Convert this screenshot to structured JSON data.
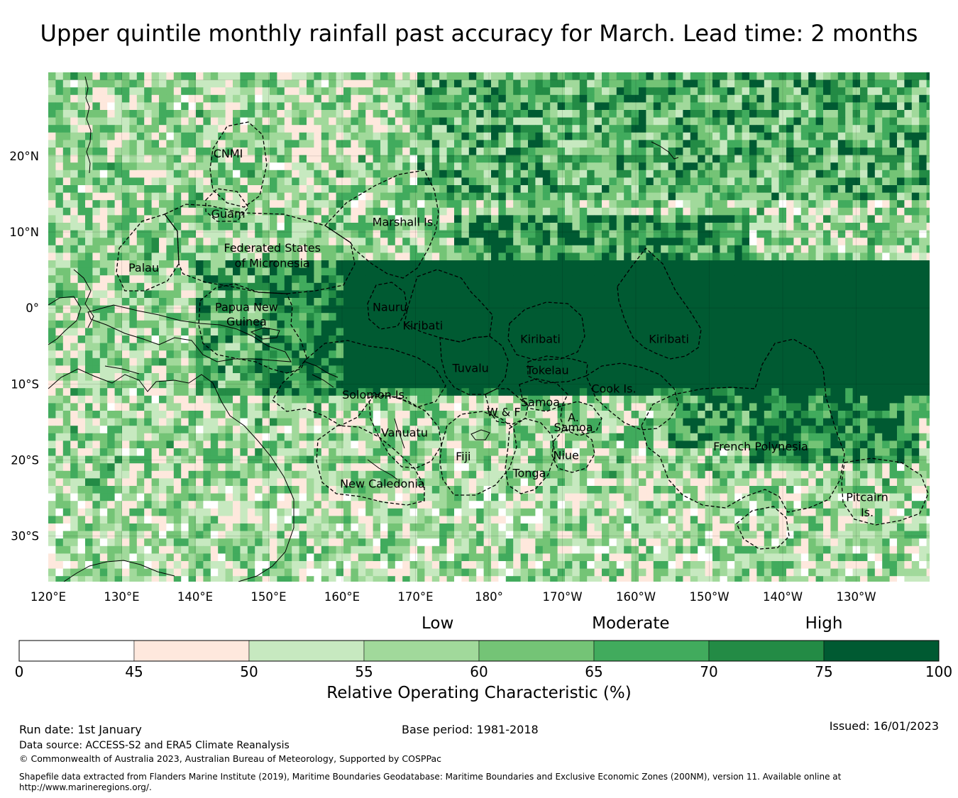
{
  "title": "Upper quintile monthly rainfall past accuracy for March. Lead time: 2 months",
  "map": {
    "lon_range": [
      120,
      240
    ],
    "lat_range": [
      -36,
      31
    ],
    "lon_ticks": [
      "120°E",
      "130°E",
      "140°E",
      "150°E",
      "160°E",
      "170°E",
      "180°",
      "170°W",
      "160°W",
      "150°W",
      "140°W",
      "130°W"
    ],
    "lat_ticks": [
      "20°N",
      "10°N",
      "0°",
      "10°S",
      "20°S",
      "30°S"
    ],
    "regions": [
      {
        "name": "CNMI",
        "lon": 144.5,
        "lat": 20.2
      },
      {
        "name": "Guam",
        "lon": 144.5,
        "lat": 12.3
      },
      {
        "name": "Marshall Is.",
        "lon": 168.5,
        "lat": 11.2
      },
      {
        "name": "Federated States",
        "lon": 150.5,
        "lat": 7.8
      },
      {
        "name": "of Micronesia",
        "lon": 150.5,
        "lat": 5.8
      },
      {
        "name": "Palau",
        "lon": 133,
        "lat": 5.2
      },
      {
        "name": "Papua New",
        "lon": 147,
        "lat": 0.0
      },
      {
        "name": "Guinea",
        "lon": 147,
        "lat": -1.9
      },
      {
        "name": "Nauru",
        "lon": 166.5,
        "lat": 0.0
      },
      {
        "name": "Kiribati",
        "lon": 171,
        "lat": -2.4
      },
      {
        "name": "Kiribati",
        "lon": 187,
        "lat": -4.2
      },
      {
        "name": "Kiribati",
        "lon": 204.5,
        "lat": -4.2
      },
      {
        "name": "Tuvalu",
        "lon": 177.5,
        "lat": -8.0
      },
      {
        "name": "Tokelau",
        "lon": 188,
        "lat": -8.3
      },
      {
        "name": "Cook Is.",
        "lon": 197,
        "lat": -10.7
      },
      {
        "name": "Solomon Is.",
        "lon": 164.5,
        "lat": -11.5
      },
      {
        "name": "Samoa",
        "lon": 187,
        "lat": -12.5
      },
      {
        "name": "W & F",
        "lon": 182,
        "lat": -13.8
      },
      {
        "name": "A.",
        "lon": 191.5,
        "lat": -14.5
      },
      {
        "name": "Samoa",
        "lon": 191.5,
        "lat": -15.8
      },
      {
        "name": "Vanuatu",
        "lon": 168.5,
        "lat": -16.5
      },
      {
        "name": "French Polynesia",
        "lon": 217,
        "lat": -18.3
      },
      {
        "name": "Fiji",
        "lon": 176.5,
        "lat": -19.6
      },
      {
        "name": "Niue",
        "lon": 190.5,
        "lat": -19.5
      },
      {
        "name": "Tonga",
        "lon": 185.5,
        "lat": -21.8
      },
      {
        "name": "New Caledonia",
        "lon": 165.5,
        "lat": -23.2
      },
      {
        "name": "Pitcairn",
        "lon": 231.5,
        "lat": -25.0
      },
      {
        "name": "Is.",
        "lon": 231.5,
        "lat": -27.0
      }
    ]
  },
  "colorbar": {
    "categories": [
      {
        "label": "Low",
        "position": 45.5
      },
      {
        "label": "Moderate",
        "position": 66.5
      },
      {
        "label": "High",
        "position": 87.5
      }
    ],
    "bounds": [
      "0",
      "45",
      "50",
      "55",
      "60",
      "65",
      "70",
      "75",
      "100"
    ],
    "colors": [
      "#ffffff",
      "#fee8dd",
      "#c7e9c0",
      "#a1d99b",
      "#74c476",
      "#41ab5d",
      "#238b45",
      "#005a32"
    ],
    "label": "Relative Operating Characteristic (%)"
  },
  "footer": {
    "run_date": "Run date: 1st January",
    "base_period": "Base period: 1981-2018",
    "issued": "Issued: 16/01/2023",
    "data_source": "Data source: ACCESS-S2 and ERA5 Climate Reanalysis",
    "copyright": "© Commonwealth of Australia 2023, Australian Bureau of Meteorology, Supported by COSPPac",
    "shapefile_line1": "Shapefile data extracted from Flanders Marine Institute (2019), Maritime Boundaries Geodatabase: Maritime Boundaries and Exclusive Economic Zones (200NM), version 11. Available online at",
    "shapefile_line2": "http://www.marineregions.org/."
  }
}
